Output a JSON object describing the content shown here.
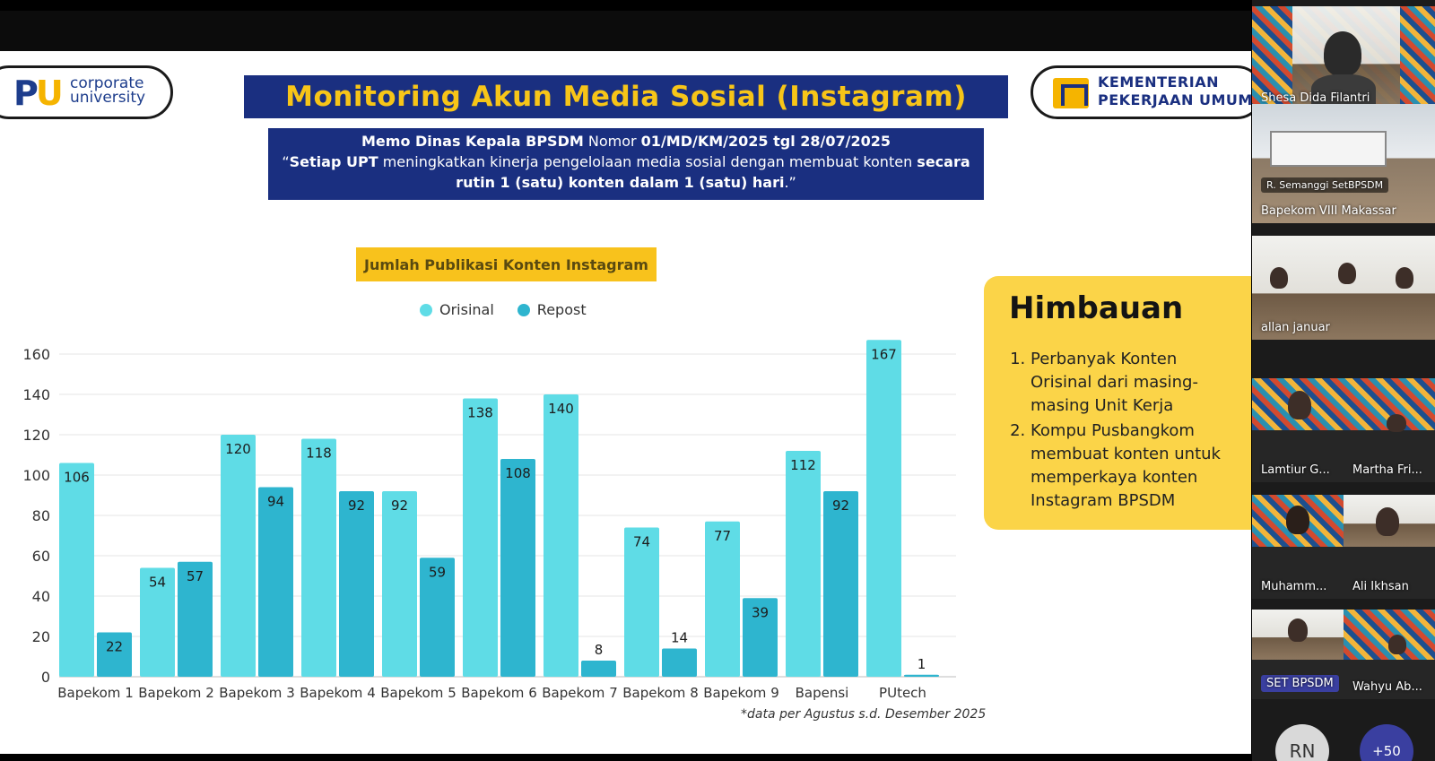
{
  "slide": {
    "logo_left": {
      "pu": "PU",
      "line1": "corporate",
      "line2": "university"
    },
    "title": "Monitoring Akun Media Sosial (Instagram)",
    "logo_right": {
      "line1": "KEMENTERIAN",
      "line2": "PEKERJAAN UMUM"
    },
    "memo": {
      "l1_bold": "Memo Dinas Kepala BPSDM",
      "l1_mid": " Nomor ",
      "l1_bold2": "01/MD/KM/2025 tgl 28/07/2025",
      "l2_open": "“",
      "l2_bold": "Setiap UPT",
      "l2_rest": " meningkatkan kinerja pengelolaan media sosial dengan membuat konten ",
      "l2_bold2": "secara",
      "l3_bold": "rutin 1 (satu) konten dalam 1 (satu) hari",
      "l3_end": ".”"
    },
    "footnote": "*data per Agustus s.d. Desember 2025",
    "himbauan": {
      "title": "Himbauan",
      "items": [
        "Perbanyak Konten Orisinal dari masing-masing Unit Kerja",
        "Kompu Pusbangkom membuat konten untuk memperkaya konten Instagram BPSDM"
      ]
    }
  },
  "chart_data": {
    "type": "bar",
    "title": "Jumlah Publikasi Konten Instagram",
    "categories": [
      "Bapekom 1",
      "Bapekom 2",
      "Bapekom 3",
      "Bapekom 4",
      "Bapekom 5",
      "Bapekom 6",
      "Bapekom 7",
      "Bapekom 8",
      "Bapekom 9",
      "Bapensi",
      "PUtech"
    ],
    "series": [
      {
        "name": "Orisinal",
        "color": "#5fdce6",
        "values": [
          106,
          54,
          120,
          118,
          92,
          138,
          140,
          74,
          77,
          112,
          167
        ]
      },
      {
        "name": "Repost",
        "color": "#2eb5cf",
        "values": [
          22,
          57,
          94,
          92,
          59,
          108,
          8,
          14,
          39,
          92,
          1
        ]
      }
    ],
    "yticks": [
      0,
      20,
      40,
      60,
      80,
      100,
      120,
      140,
      160
    ],
    "ylim": [
      0,
      170
    ],
    "grid": true,
    "legend": "top"
  },
  "participants": [
    {
      "name": "Shesa Dida Filantri"
    },
    {
      "name": "R. Semanggi SetBPSDM"
    },
    {
      "name": "Bapekom VIII Makassar"
    },
    {
      "name": "allan januar"
    },
    {
      "name": "Lamtiur G..."
    },
    {
      "name": "Martha Fri..."
    },
    {
      "name": "Muhamm..."
    },
    {
      "name": "Ali Ikhsan"
    },
    {
      "name": "SET BPSDM"
    },
    {
      "name": "Wahyu Ab..."
    }
  ],
  "avatar_initials": "RN",
  "more_count": "+50",
  "colors": {
    "navy": "#1a2f80",
    "gold": "#f7c518",
    "orisinal": "#5fdce6",
    "repost": "#2eb5cf"
  }
}
